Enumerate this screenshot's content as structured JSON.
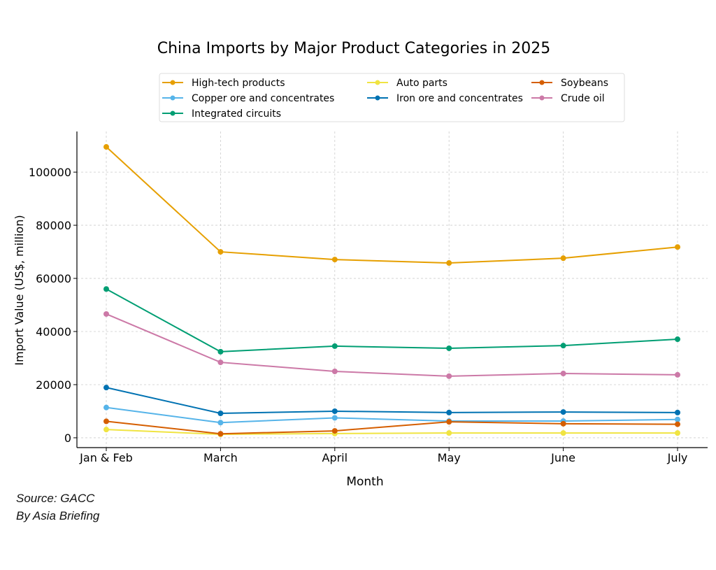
{
  "chart_data": {
    "type": "line",
    "title": "China Imports by Major Product Categories in 2025",
    "xlabel": "Month",
    "ylabel": "Import Value (US$, million)",
    "categories": [
      "Jan & Feb",
      "March",
      "April",
      "May",
      "June",
      "July"
    ],
    "ylim": [
      -3700,
      115300
    ],
    "yticks": [
      0,
      20000,
      40000,
      60000,
      80000,
      100000
    ],
    "grid": true,
    "legend_placement": "top-center",
    "series": [
      {
        "name": "High-tech products",
        "color": "#E69F00",
        "values": [
          109500,
          70000,
          67100,
          65800,
          67600,
          71800
        ]
      },
      {
        "name": "Copper ore and concentrates",
        "color": "#56B4E9",
        "values": [
          11400,
          5700,
          7500,
          6300,
          6300,
          6900
        ]
      },
      {
        "name": "Integrated circuits",
        "color": "#009E73",
        "values": [
          56000,
          32400,
          34500,
          33700,
          34700,
          37100
        ]
      },
      {
        "name": "Auto parts",
        "color": "#F0E442",
        "values": [
          3100,
          1300,
          1600,
          1800,
          1800,
          1800
        ]
      },
      {
        "name": "Iron ore and concentrates",
        "color": "#0072B2",
        "values": [
          18900,
          9200,
          10000,
          9500,
          9700,
          9500
        ]
      },
      {
        "name": "Soybeans",
        "color": "#D55E00",
        "values": [
          6200,
          1500,
          2600,
          6000,
          5300,
          5100
        ]
      },
      {
        "name": "Crude oil",
        "color": "#CC79A7",
        "values": [
          46600,
          28400,
          25000,
          23200,
          24200,
          23700
        ]
      }
    ]
  },
  "source": {
    "line1": "Source: GACC",
    "line2": "By Asia Briefing"
  }
}
